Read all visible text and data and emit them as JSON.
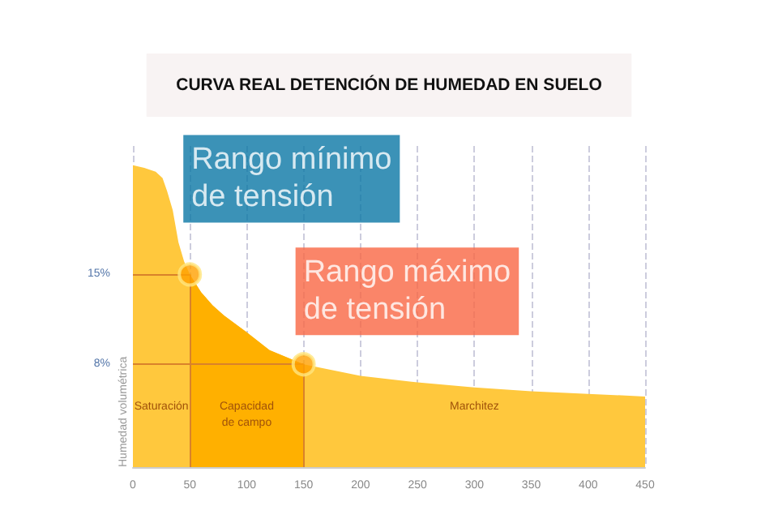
{
  "chart_data": {
    "type": "area",
    "title": "CURVA REAL DETENCIÓN DE HUMEDAD EN SUELO",
    "ylabel": "Humedad volumétrica",
    "xlim": [
      0,
      450
    ],
    "xticks": [
      0,
      50,
      100,
      150,
      200,
      250,
      300,
      350,
      400,
      450
    ],
    "ylim": [
      0,
      25
    ],
    "yticks": [
      {
        "value": 8,
        "label": "8%"
      },
      {
        "value": 15,
        "label": "15%"
      }
    ],
    "grid": "x",
    "series": [
      {
        "type": "area",
        "color": "#ffc83d",
        "x": [
          0,
          10,
          20,
          26,
          30,
          35,
          40,
          45,
          50,
          60,
          70,
          80,
          100,
          120,
          150,
          200,
          250,
          300,
          350,
          400,
          450
        ],
        "values": [
          23.5,
          23.3,
          23,
          22.5,
          21.5,
          20,
          17.5,
          16,
          15,
          13.6,
          12.6,
          11.8,
          10.5,
          9.1,
          8,
          7.1,
          6.6,
          6.2,
          5.9,
          5.7,
          5.5
        ]
      },
      {
        "type": "area",
        "color": "#ffb000",
        "x": [
          50,
          60,
          70,
          80,
          100,
          120,
          150
        ],
        "values": [
          15,
          13.6,
          12.6,
          11.8,
          10.5,
          9.1,
          8
        ]
      },
      {
        "type": "scatter",
        "color": "#ffa000",
        "marker": "circle",
        "x": [
          50,
          150
        ],
        "values": [
          15,
          8
        ]
      }
    ],
    "ref_lines": [
      {
        "axis": "y",
        "value": 15,
        "color": "#d9822b"
      },
      {
        "axis": "y",
        "value": 8,
        "color": "#d9822b"
      },
      {
        "axis": "x",
        "value": 50,
        "color": "#d9822b"
      },
      {
        "axis": "x",
        "value": 150,
        "color": "#d9822b"
      }
    ],
    "annotations": [
      {
        "text": "Rango mínimo\nde tensión",
        "x": 50,
        "y": 15
      },
      {
        "text": "Rango máximo\nde tensión",
        "x": 150,
        "y": 8
      },
      "Saturación",
      "Capacidad\nde campo",
      "Marchitez"
    ]
  }
}
